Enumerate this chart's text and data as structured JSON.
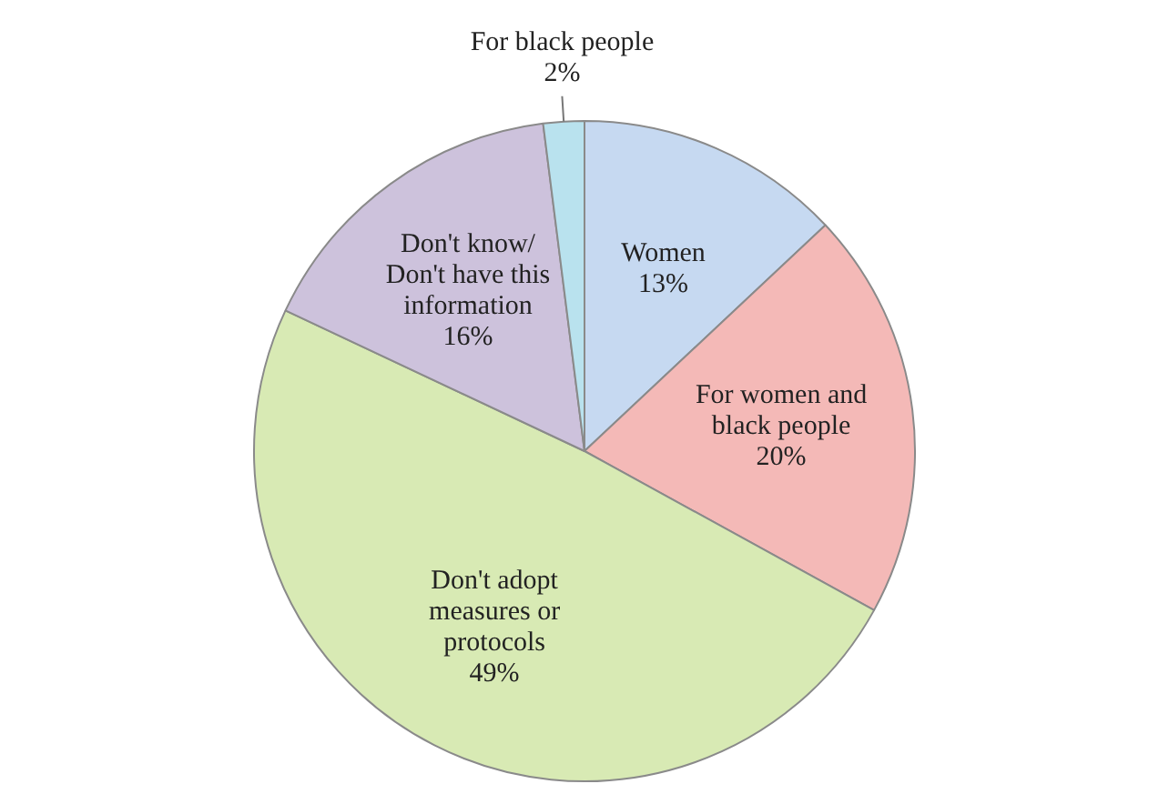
{
  "chart_data": {
    "type": "pie",
    "categories": [
      "Women",
      "For women and black people",
      "Don't adopt measures or protocols",
      "Don't know/ Don't have this information",
      "For black people"
    ],
    "values": [
      13,
      20,
      49,
      16,
      2
    ],
    "value_labels": [
      "13%",
      "20%",
      "49%",
      "16%",
      "2%"
    ],
    "colors": [
      "#c6d9f1",
      "#f4b9b7",
      "#d8eab4",
      "#cdc2dc",
      "#b9e2ee"
    ],
    "legend": false
  }
}
